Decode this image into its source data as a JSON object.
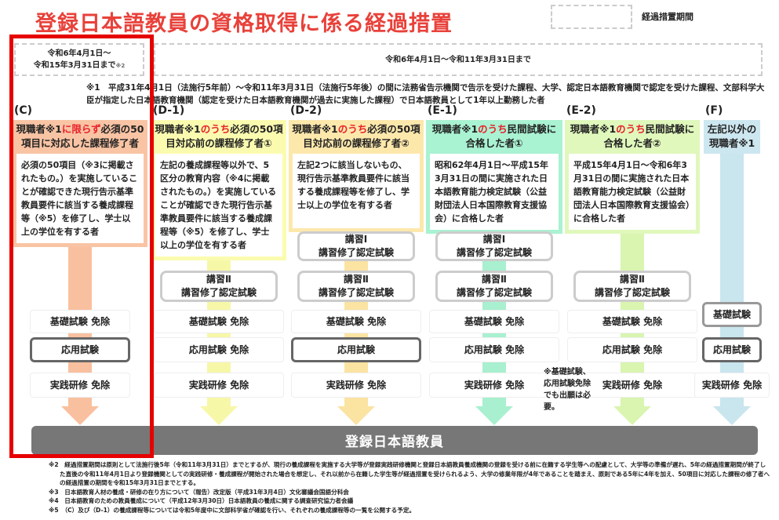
{
  "title": "登録日本語教員の資格取得に係る経過措置",
  "legend": {
    "label": "経過措置期間"
  },
  "periods": [
    {
      "text_line1": "令和6年4月1日～",
      "text_line2": "令和15年3月31日まで",
      "note": "※2"
    },
    {
      "text": "令和6年4月1日～令和11年3月31日まで"
    }
  ],
  "note1": "※1　平成31年4月1日（法施行5年前）～令和11年3月31日（法施行5年後）の間に法務省告示機関で告示を受けた課程、大学、認定日本語教育機関で認定を受けた課程、文部科学大臣が指定した日本語教育機関（認定を受けた日本語教育機関が過去に実施した課程）で日本語教員として1年以上勤務した者",
  "columns": [
    {
      "id": "C",
      "label": "(C)",
      "title_pre": "現職者※1",
      "title_red": "に限らず",
      "title_post": "必須の50項目に対応した課程修了者",
      "desc": "必須の50項目（※3に掲載されたもの。）を実施していることが確認できた現行告示基準教員要件に該当する養成課程等（※5）を修了し、学士以上の学位を有する者",
      "color": "#f9c4a4",
      "arrow": "#f9c09f",
      "stages": [
        {
          "row": "kiso",
          "text": "基礎試験 免除",
          "style": "plain"
        },
        {
          "row": "oyo",
          "text": "応用試験",
          "style": "exam2"
        },
        {
          "row": "jissen",
          "text": "実践研修 免除",
          "style": "plain"
        }
      ]
    },
    {
      "id": "D-1",
      "label": "(D-1)",
      "title_pre": "現職者※1",
      "title_red": "のうち",
      "title_post": "必須の50項目対応前の課程修了者①",
      "desc": "左記の養成課程等以外で、5区分の教育内容（※4に掲載されたもの。）を実施していることが確認できた現行告示基準教員要件に該当する養成課程等（※5）を修了し、学士以上の学位を有する者",
      "color": "#fbfbb0",
      "arrow": "#f7f7a8",
      "stages": [
        {
          "row": "k2",
          "text": "講習Ⅱ\n講習修了認定試験",
          "style": "course"
        },
        {
          "row": "kiso",
          "text": "基礎試験 免除",
          "style": "plain"
        },
        {
          "row": "oyo",
          "text": "応用試験 免除",
          "style": "plain"
        },
        {
          "row": "jissen",
          "text": "実践研修 免除",
          "style": "plain"
        }
      ]
    },
    {
      "id": "D-2",
      "label": "(D-2)",
      "title_pre": "現職者※1",
      "title_red": "のうち",
      "title_post": "必須の50項目対応前の課程修了者②",
      "desc": "左記2つに該当しないもの、現行告示基準教員要件に該当する養成課程等を修了し、学士以上の学位を有する者",
      "color": "#fde8ac",
      "arrow": "#fbe3a2",
      "stages": [
        {
          "row": "k1",
          "text": "講習Ⅰ\n講習修了認定試験",
          "style": "course"
        },
        {
          "row": "k2",
          "text": "講習Ⅱ\n講習修了認定試験",
          "style": "course"
        },
        {
          "row": "kiso",
          "text": "基礎試験 免除",
          "style": "plain"
        },
        {
          "row": "oyo",
          "text": "応用試験",
          "style": "exam2"
        },
        {
          "row": "jissen",
          "text": "実践研修 免除",
          "style": "plain"
        }
      ]
    },
    {
      "id": "E-1",
      "label": "(E-1)",
      "title_pre": "現職者※1",
      "title_red": "のうち",
      "title_post": "民間試験に合格した者①",
      "desc": "昭和62年4月1日～平成15年3月31日の間に実施された日本語教育能力検定試験（公益財団法人日本国際教育支援協会）に合格した者",
      "color": "#a9f2d2",
      "arrow": "#a8f0cf",
      "stages": [
        {
          "row": "k1",
          "text": "講習Ⅰ\n講習修了認定試験",
          "style": "course"
        },
        {
          "row": "k2",
          "text": "講習Ⅱ\n講習修了認定試験",
          "style": "course"
        },
        {
          "row": "kiso",
          "text": "基礎試験 免除",
          "style": "plain"
        },
        {
          "row": "oyo",
          "text": "応用試験 免除",
          "style": "plain"
        },
        {
          "row": "jissen",
          "text": "実践研修 免除",
          "style": "plain"
        }
      ]
    },
    {
      "id": "E-2",
      "label": "(E-2)",
      "title_pre": "現職者※1",
      "title_red": "のうち",
      "title_post": "民間試験に合格した者②",
      "desc": "平成15年4月1日～令和6年3月31日の間に実施された日本語教育能力検定試験（公益財団法人日本国際教育支援協会）に合格した者",
      "color": "#e0f8bc",
      "arrow": "#d9f5b0",
      "stages": [
        {
          "row": "k2",
          "text": "講習Ⅱ\n講習修了認定試験",
          "style": "course"
        },
        {
          "row": "kiso",
          "text": "基礎試験 免除",
          "style": "plain"
        },
        {
          "row": "oyo",
          "text": "応用試験 免除",
          "style": "plain"
        },
        {
          "row": "jissen",
          "text": "実践研修 免除",
          "style": "plain"
        }
      ]
    },
    {
      "id": "F",
      "label": "(F)",
      "title_pre": "左記以外の現職者※1",
      "title_red": "",
      "title_post": "",
      "desc": "",
      "color": "#cde7f0",
      "arrow": "#c9e5ee",
      "stages": [
        {
          "row": "kisoF",
          "text": "基礎試験",
          "style": "exam"
        },
        {
          "row": "oyo",
          "text": "応用試験",
          "style": "exam2"
        },
        {
          "row": "jissen",
          "text": "実践研修 免除",
          "style": "plain"
        }
      ]
    }
  ],
  "e1_note": "※基礎試験、応用試験免除でも出願は必要。",
  "bottom": "登録日本語教員",
  "footnotes": [
    "※2　経過措置期間は原則として法施行後5年（令和11年3月31日）までとするが、現行の養成課程を実施する大学等が登録実践研修機関と登録日本語教員養成機関の登録を受ける前に在籍する学生等への配慮として、大学等の準備が遅れ、5年の経過措置期間が終了した直後の令和11年4月1日より登録機関としての実践研修・養成課程が開始された場合を想定し、それ以前から在籍した学生等が経過措置を受けられるよう、大学の修業年限が4年であることを踏まえ、原則である5年に4年を加え、50項目に対応した課程の修了者への経過措置の期間を令和15年3月31日までとする。",
    "※3　日本語教育人材の養成・研修の在り方について（報告）改定版（平成31年3月4日）文化審議会国語分科会",
    "※4　日本語教育のための教員養成について（平成12年3月30日）日本語教員の養成に関する調査研究協力者会議",
    "※5　（C）及び（D-1）の養成課程等については令和5年度中に文部科学省が確認を行い、それぞれの養成課程等の一覧を公開する予定。"
  ]
}
